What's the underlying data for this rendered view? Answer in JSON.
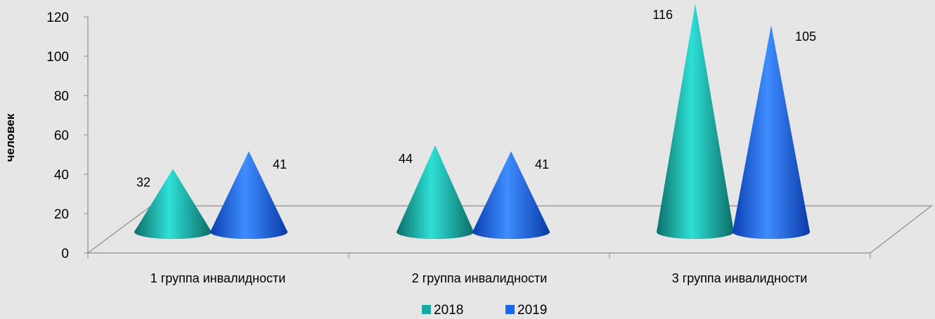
{
  "chart_data": {
    "type": "bar",
    "style": "3d-cone",
    "categories": [
      "1 группа инвалидности",
      "2 группа инвалидности",
      "3 группа инвалидности"
    ],
    "series": [
      {
        "name": "2018",
        "values": [
          32,
          44,
          116
        ],
        "color": "#1aa8a0"
      },
      {
        "name": "2019",
        "values": [
          41,
          41,
          105
        ],
        "color": "#1668f0"
      }
    ],
    "ylabel": "человек",
    "xlabel": "",
    "ylim": [
      0,
      120
    ],
    "yticks": [
      "0",
      "20",
      "40",
      "60",
      "80",
      "100",
      "120"
    ],
    "data_labels": [
      "32",
      "44",
      "116",
      "41",
      "41",
      "105"
    ],
    "legend_position": "bottom",
    "grid": false
  }
}
